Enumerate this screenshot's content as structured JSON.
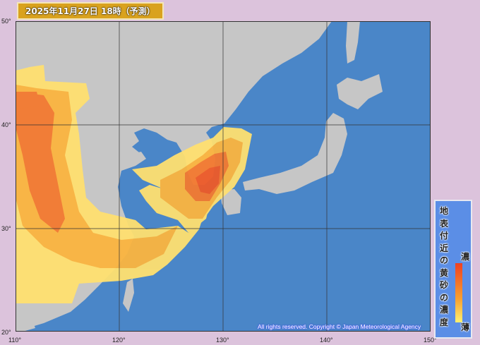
{
  "title": "2025年11月27日 18時（予測）",
  "axes": {
    "lat_labels": [
      "50°",
      "40°",
      "30°",
      "20°"
    ],
    "lon_labels": [
      "110°",
      "120°",
      "130°",
      "140°",
      "150°"
    ]
  },
  "legend": {
    "title_chars": [
      "地",
      "表",
      "付",
      "近",
      "の",
      "黄",
      "砂",
      "の",
      "濃",
      "度"
    ],
    "high_label": "濃",
    "low_label": "薄",
    "colors": {
      "high": "#f04020",
      "mid": "#f7a030",
      "low": "#fff070"
    }
  },
  "copyright": "All rights reserved. Copyright © Japan Meteorological Agency",
  "colors": {
    "ocean": "#4a86c8",
    "land": "#c8c8c8",
    "frame": "#dcc3dc"
  }
}
